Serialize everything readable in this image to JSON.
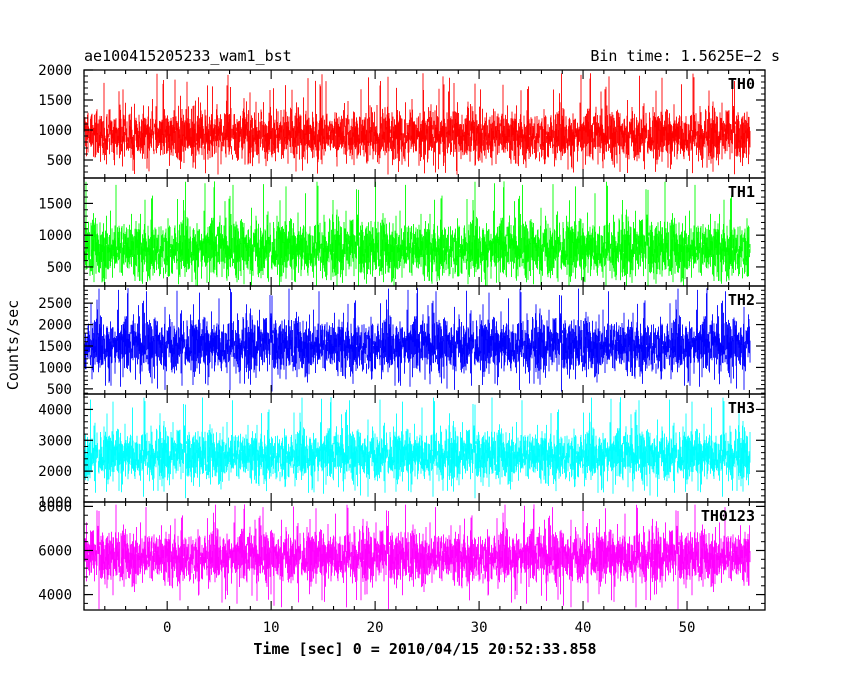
{
  "chart_data": {
    "type": "line",
    "title": "ae100415205233_wam1_bst",
    "bin_time_label": "Bin time: 1.5625E−2 s",
    "xlabel": "Time [sec] 0 = 2010/04/15 20:52:33.858",
    "ylabel": "Counts/sec",
    "xlim": [
      -8,
      57.5
    ],
    "x_ticks": [
      0,
      10,
      20,
      30,
      40,
      50
    ],
    "x_range_data": [
      -7.9,
      56.1
    ],
    "grid": false,
    "panels": [
      {
        "name": "TH0",
        "color": "#ff0000",
        "ylim": [
          200,
          2000
        ],
        "y_ticks": [
          500,
          1000,
          1500,
          2000
        ],
        "baseline": 900,
        "spread": 230,
        "peak_max": 1950,
        "floor_min": 250
      },
      {
        "name": "TH1",
        "color": "#00ff00",
        "ylim": [
          200,
          1900
        ],
        "y_ticks": [
          500,
          1000,
          1500
        ],
        "baseline": 780,
        "spread": 250,
        "peak_max": 1850,
        "floor_min": 180
      },
      {
        "name": "TH2",
        "color": "#0000ff",
        "ylim": [
          380,
          2900
        ],
        "y_ticks": [
          500,
          1000,
          1500,
          2000,
          2500
        ],
        "baseline": 1500,
        "spread": 350,
        "peak_max": 2850,
        "floor_min": 420
      },
      {
        "name": "TH3",
        "color": "#00ffff",
        "ylim": [
          1000,
          4500
        ],
        "y_ticks": [
          1000,
          2000,
          3000,
          4000
        ],
        "baseline": 2500,
        "spread": 450,
        "peak_max": 4400,
        "floor_min": 1100
      },
      {
        "name": "TH0123",
        "color": "#ff00ff",
        "ylim": [
          3300,
          8200
        ],
        "y_ticks": [
          4000,
          6000,
          8000
        ],
        "baseline": 5700,
        "spread": 650,
        "peak_max": 8100,
        "floor_min": 3300
      }
    ]
  }
}
